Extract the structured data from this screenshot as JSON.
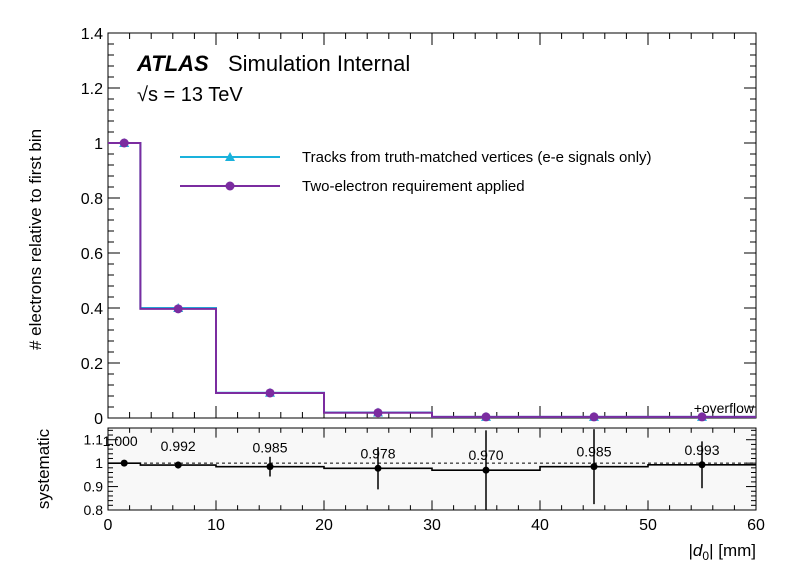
{
  "chart_data": [
    {
      "type": "line",
      "panel": "main",
      "ylabel": "# electrons relative to first bin",
      "ylim": [
        0,
        1.4
      ],
      "yticks": [
        0,
        0.2,
        0.4,
        0.6,
        0.8,
        1,
        1.2,
        1.4
      ],
      "ytick_labels": [
        "0",
        "0.2",
        "0.4",
        "0.6",
        "0.8",
        "1",
        "1.2",
        "1.4"
      ],
      "xlim": [
        0,
        60
      ],
      "bin_edges": [
        0,
        3,
        10,
        20,
        30,
        40,
        50,
        60
      ],
      "series": [
        {
          "name": "Tracks from truth-matched vertices (e-e signals only)",
          "color": "#1ab2dc",
          "marker": "triangle",
          "values": [
            1.0,
            0.4,
            0.092,
            0.02,
            0.004,
            0.004,
            0.004
          ]
        },
        {
          "name": "Two-electron requirement applied",
          "color": "#7b2ca0",
          "marker": "circle",
          "values": [
            1.0,
            0.397,
            0.091,
            0.019,
            0.004,
            0.004,
            0.004
          ]
        }
      ],
      "annotations": {
        "atlas": "ATLAS",
        "atlas_sub": "Simulation Internal",
        "energy_sqrt": "√s",
        "energy_rest": " = 13 TeV",
        "overflow": "+overflow"
      },
      "legend_placement": "top-center"
    },
    {
      "type": "scatter",
      "panel": "ratio",
      "ylabel": "systematic",
      "ylim": [
        0.8,
        1.15
      ],
      "yticks": [
        0.8,
        0.9,
        1,
        1.1
      ],
      "ytick_labels": [
        "0.8",
        "0.9",
        "1",
        "1.1"
      ],
      "xlim": [
        0,
        60
      ],
      "xticks": [
        0,
        10,
        20,
        30,
        40,
        50,
        60
      ],
      "xtick_labels": [
        "0",
        "10",
        "20",
        "30",
        "40",
        "50",
        "60"
      ],
      "xlabel_var": "d",
      "xlabel_sub": "0",
      "xlabel_unit": "[mm]",
      "reference_line": 1.0,
      "bin_edges": [
        0,
        3,
        10,
        20,
        30,
        40,
        50,
        60
      ],
      "values": [
        1.0,
        0.992,
        0.985,
        0.978,
        0.97,
        0.985,
        0.993
      ],
      "value_labels": [
        "1.000",
        "0.992",
        "0.985",
        "0.978",
        "0.970",
        "0.985",
        "0.993"
      ],
      "errors": [
        0.005,
        0.015,
        0.042,
        0.09,
        0.17,
        0.16,
        0.1
      ]
    }
  ]
}
